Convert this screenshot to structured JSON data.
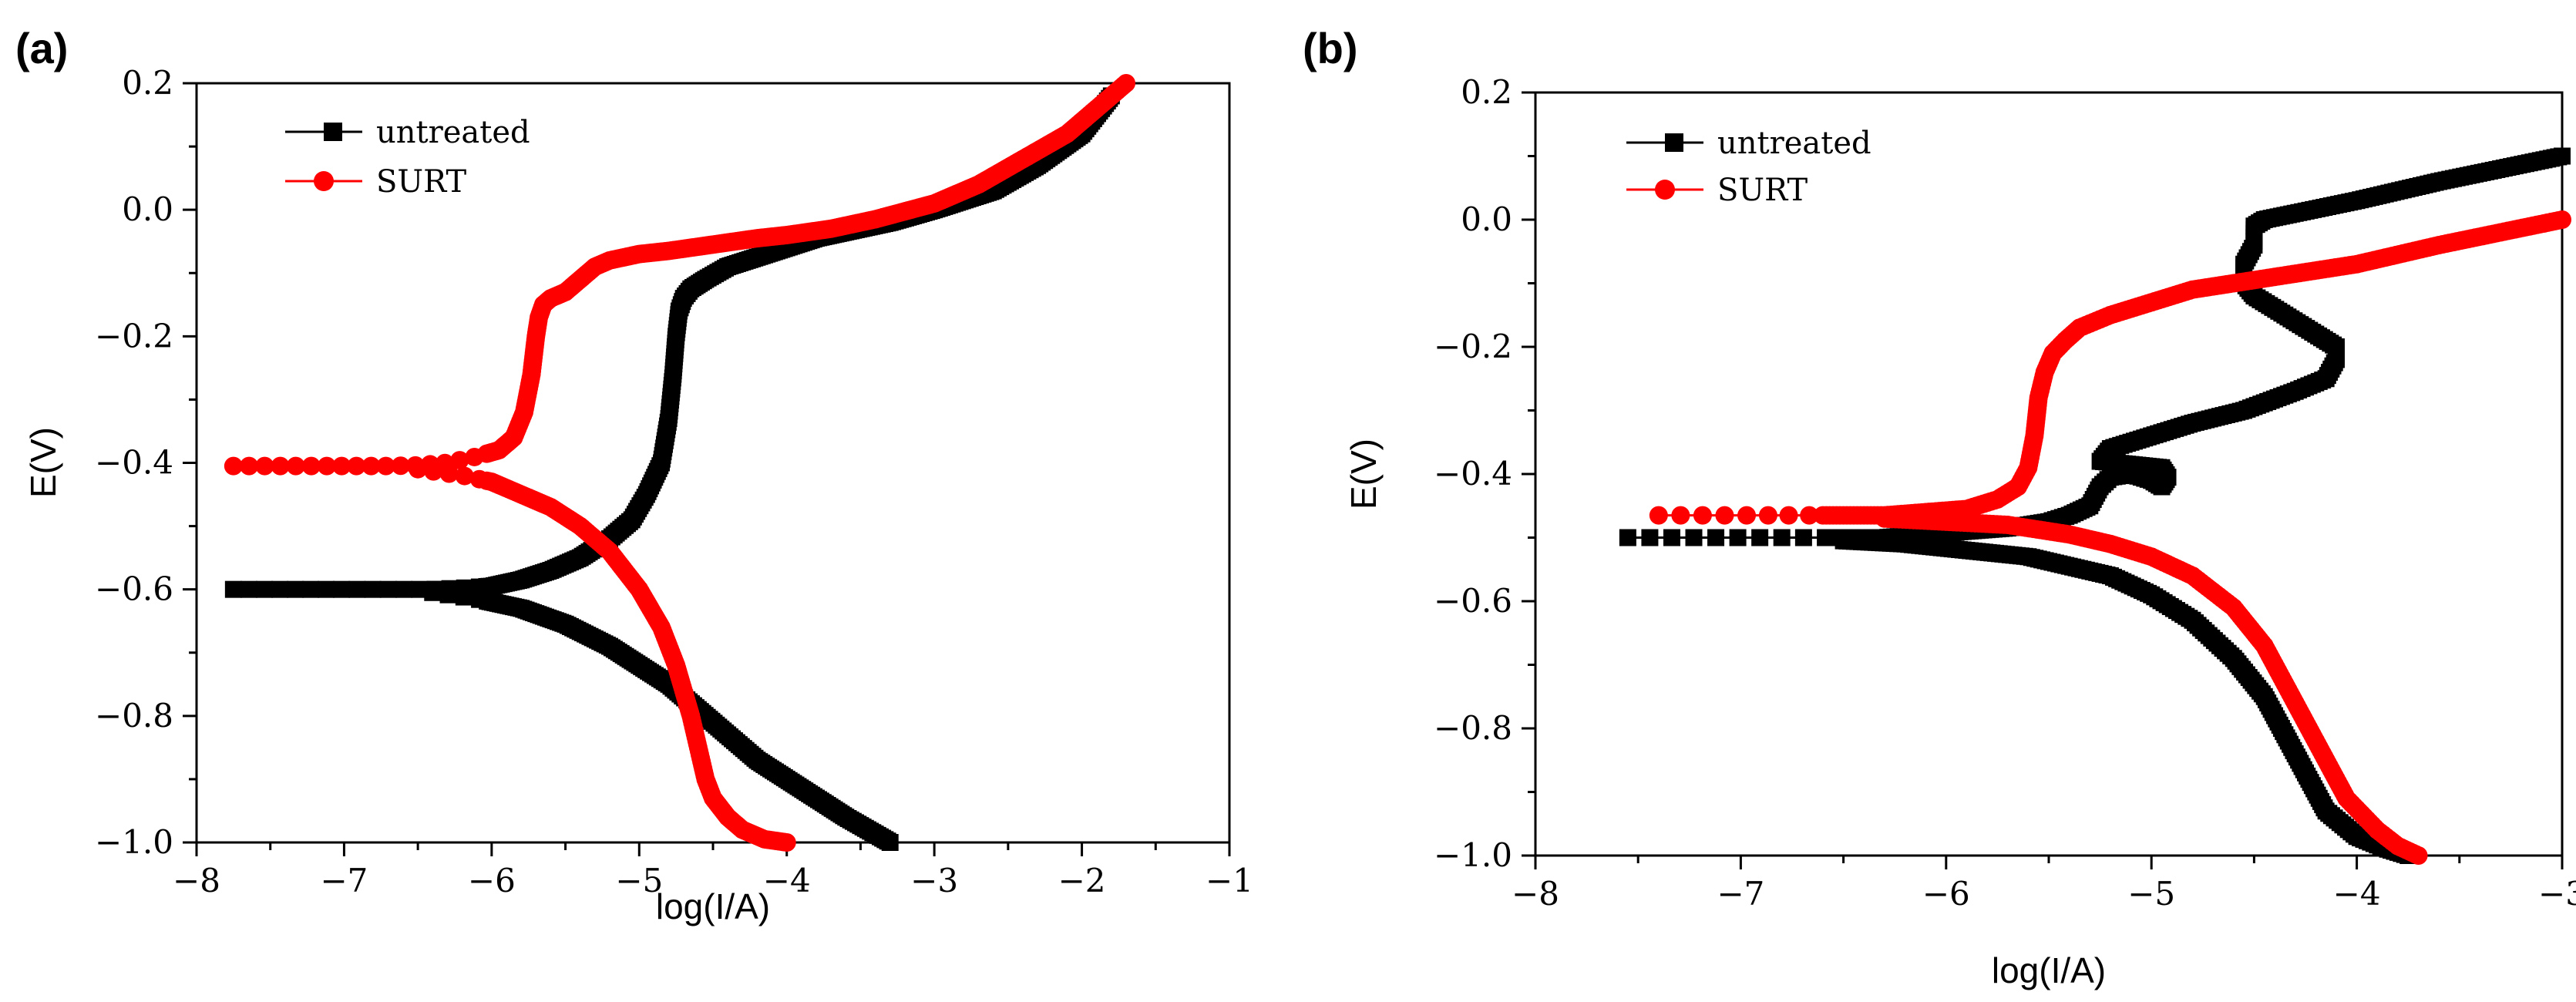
{
  "chart_data": [
    {
      "type": "line",
      "panel_label": "(a)",
      "xlabel": "log(I/A)",
      "ylabel": "E(V)",
      "xlim": [
        -8,
        -1
      ],
      "ylim": [
        -1.0,
        0.2
      ],
      "x_ticks": [
        -8,
        -7,
        -6,
        -5,
        -4,
        -3,
        -2,
        -1
      ],
      "x_tick_labels": [
        "−8",
        "−7",
        "−6",
        "−5",
        "−4",
        "−3",
        "−2",
        "−1"
      ],
      "y_ticks": [
        0.2,
        0.0,
        -0.2,
        -0.4,
        -0.6,
        -0.8,
        -1.0
      ],
      "y_tick_labels": [
        "0.2",
        "0.0",
        "−0.2",
        "−0.4",
        "−0.6",
        "−0.8",
        "−1.0"
      ],
      "legend_position": "top-left",
      "grid": false,
      "series": [
        {
          "name": "untreated",
          "color": "#000000",
          "marker": "square",
          "anodic": {
            "x": [
              -7.75,
              -7.4,
              -7.0,
              -6.7,
              -6.4,
              -6.2,
              -6.0,
              -5.8,
              -5.6,
              -5.4,
              -5.2,
              -5.05,
              -4.95,
              -4.85,
              -4.8,
              -4.77,
              -4.75,
              -4.73,
              -4.7,
              -4.65,
              -4.55,
              -4.4,
              -4.2,
              -4.0,
              -3.8,
              -3.6,
              -3.3,
              -3.0,
              -2.6,
              -2.3,
              -2.0,
              -1.8
            ],
            "y": [
              -0.6,
              -0.6,
              -0.6,
              -0.6,
              -0.6,
              -0.598,
              -0.595,
              -0.585,
              -0.57,
              -0.55,
              -0.52,
              -0.49,
              -0.45,
              -0.4,
              -0.33,
              -0.26,
              -0.2,
              -0.16,
              -0.14,
              -0.125,
              -0.11,
              -0.09,
              -0.075,
              -0.06,
              -0.045,
              -0.035,
              -0.02,
              0.0,
              0.03,
              0.07,
              0.12,
              0.18
            ]
          },
          "cathodic": {
            "x": [
              -6.4,
              -6.1,
              -5.8,
              -5.5,
              -5.2,
              -5.0,
              -4.8,
              -4.6,
              -4.4,
              -4.2,
              -4.0,
              -3.8,
              -3.6,
              -3.45,
              -3.3
            ],
            "y": [
              -0.605,
              -0.615,
              -0.63,
              -0.655,
              -0.69,
              -0.72,
              -0.75,
              -0.79,
              -0.83,
              -0.87,
              -0.9,
              -0.93,
              -0.96,
              -0.98,
              -1.0
            ]
          }
        },
        {
          "name": "SURT",
          "color": "#ff0000",
          "marker": "circle",
          "anodic": {
            "x": [
              -7.75,
              -7.45,
              -7.1,
              -6.9,
              -6.7,
              -6.5,
              -6.3,
              -6.1,
              -5.95,
              -5.85,
              -5.78,
              -5.73,
              -5.7,
              -5.68,
              -5.65,
              -5.6,
              -5.5,
              -5.4,
              -5.3,
              -5.2,
              -5.0,
              -4.8,
              -4.5,
              -4.2,
              -4.0,
              -3.7,
              -3.4,
              -3.0,
              -2.7,
              -2.4,
              -2.1,
              -1.9,
              -1.7
            ],
            "y": [
              -0.405,
              -0.405,
              -0.405,
              -0.405,
              -0.405,
              -0.404,
              -0.4,
              -0.39,
              -0.38,
              -0.36,
              -0.32,
              -0.26,
              -0.2,
              -0.17,
              -0.15,
              -0.14,
              -0.13,
              -0.11,
              -0.09,
              -0.08,
              -0.07,
              -0.065,
              -0.055,
              -0.045,
              -0.04,
              -0.03,
              -0.015,
              0.01,
              0.04,
              0.08,
              0.12,
              0.16,
              0.2
            ]
          },
          "cathodic": {
            "x": [
              -6.5,
              -6.2,
              -6.0,
              -5.8,
              -5.6,
              -5.4,
              -5.2,
              -5.0,
              -4.85,
              -4.75,
              -4.7,
              -4.65,
              -4.6,
              -4.55,
              -4.5,
              -4.4,
              -4.3,
              -4.15,
              -4.0
            ],
            "y": [
              -0.41,
              -0.42,
              -0.43,
              -0.45,
              -0.47,
              -0.5,
              -0.54,
              -0.6,
              -0.66,
              -0.72,
              -0.76,
              -0.8,
              -0.85,
              -0.9,
              -0.93,
              -0.96,
              -0.98,
              -0.995,
              -1.0
            ]
          }
        }
      ]
    },
    {
      "type": "line",
      "panel_label": "(b)",
      "xlabel": "log(I/A)",
      "ylabel": "E(V)",
      "xlim": [
        -8,
        -3
      ],
      "ylim": [
        -1.0,
        0.2
      ],
      "x_ticks": [
        -8,
        -7,
        -6,
        -5,
        -4,
        -3
      ],
      "x_tick_labels": [
        "−8",
        "−7",
        "−6",
        "−5",
        "−4",
        "−3"
      ],
      "y_ticks": [
        0.2,
        0.0,
        -0.2,
        -0.4,
        -0.6,
        -0.8,
        -1.0
      ],
      "y_tick_labels": [
        "0.2",
        "0.0",
        "−0.2",
        "−0.4",
        "−0.6",
        "−0.8",
        "−1.0"
      ],
      "legend_position": "top-left",
      "grid": false,
      "series": [
        {
          "name": "untreated",
          "color": "#000000",
          "marker": "square",
          "anodic": {
            "x": [
              -7.55,
              -6.8,
              -6.5,
              -6.3,
              -6.1,
              -5.9,
              -5.7,
              -5.5,
              -5.4,
              -5.3,
              -5.25,
              -5.2,
              -5.1,
              -5.0,
              -4.95,
              -4.92,
              -4.95,
              -5.1,
              -5.25,
              -5.2,
              -5.0,
              -4.8,
              -4.55,
              -4.3,
              -4.15,
              -4.1,
              -4.1,
              -4.2,
              -4.35,
              -4.5,
              -4.55,
              -4.55,
              -4.5,
              -4.5,
              -4.45,
              -4.3,
              -4.0,
              -3.6,
              -3.3,
              -3.0
            ],
            "y": [
              -0.5,
              -0.5,
              -0.5,
              -0.5,
              -0.495,
              -0.49,
              -0.485,
              -0.475,
              -0.465,
              -0.45,
              -0.42,
              -0.405,
              -0.4,
              -0.41,
              -0.42,
              -0.405,
              -0.39,
              -0.385,
              -0.38,
              -0.36,
              -0.34,
              -0.32,
              -0.3,
              -0.27,
              -0.25,
              -0.22,
              -0.2,
              -0.18,
              -0.15,
              -0.12,
              -0.1,
              -0.07,
              -0.04,
              -0.01,
              0.0,
              0.01,
              0.03,
              0.06,
              0.08,
              0.1
            ]
          },
          "cathodic": {
            "x": [
              -6.5,
              -6.2,
              -5.9,
              -5.6,
              -5.4,
              -5.2,
              -5.0,
              -4.8,
              -4.6,
              -4.45,
              -4.35,
              -4.25,
              -4.15,
              -4.0,
              -3.85,
              -3.75
            ],
            "y": [
              -0.505,
              -0.51,
              -0.52,
              -0.53,
              -0.545,
              -0.56,
              -0.59,
              -0.63,
              -0.69,
              -0.75,
              -0.81,
              -0.87,
              -0.93,
              -0.97,
              -0.99,
              -1.0
            ]
          }
        },
        {
          "name": "SURT",
          "color": "#ff0000",
          "marker": "circle",
          "anodic": {
            "x": [
              -7.4,
              -6.9,
              -6.7,
              -6.5,
              -6.3,
              -6.1,
              -5.9,
              -5.75,
              -5.65,
              -5.6,
              -5.57,
              -5.55,
              -5.52,
              -5.48,
              -5.42,
              -5.35,
              -5.2,
              -5.0,
              -4.8,
              -4.6,
              -4.4,
              -4.0,
              -3.6,
              -3.3,
              -3.0
            ],
            "y": [
              -0.465,
              -0.465,
              -0.465,
              -0.465,
              -0.465,
              -0.46,
              -0.455,
              -0.44,
              -0.42,
              -0.39,
              -0.34,
              -0.28,
              -0.24,
              -0.21,
              -0.19,
              -0.17,
              -0.15,
              -0.13,
              -0.11,
              -0.1,
              -0.09,
              -0.07,
              -0.04,
              -0.02,
              0.0
            ]
          },
          "cathodic": {
            "x": [
              -6.3,
              -6.0,
              -5.7,
              -5.4,
              -5.2,
              -5.0,
              -4.8,
              -4.6,
              -4.45,
              -4.35,
              -4.25,
              -4.15,
              -4.05,
              -3.9,
              -3.8,
              -3.7
            ],
            "y": [
              -0.47,
              -0.475,
              -0.48,
              -0.495,
              -0.51,
              -0.53,
              -0.56,
              -0.61,
              -0.67,
              -0.73,
              -0.79,
              -0.85,
              -0.91,
              -0.96,
              -0.985,
              -1.0
            ]
          }
        }
      ]
    }
  ]
}
